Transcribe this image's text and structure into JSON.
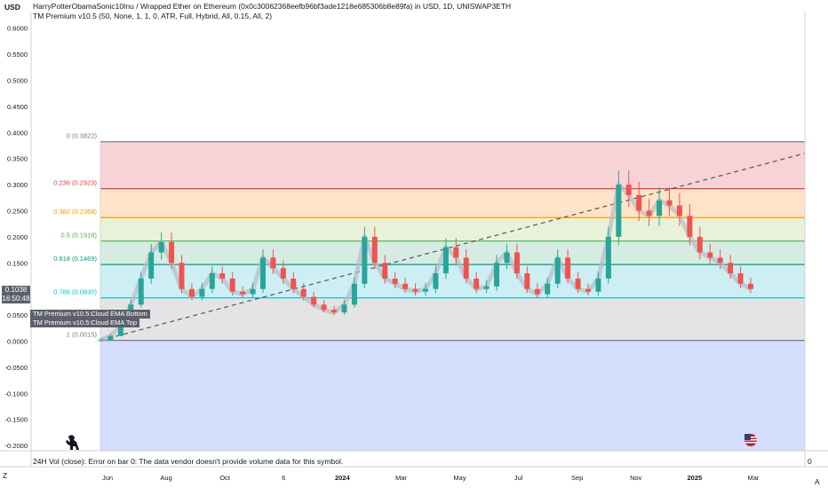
{
  "header": {
    "currency": "USD",
    "title": "HarryPotterObamaSonic10Inu / Wrapped Ether on Ethereum (0x0c30062368eefb96bf3ade1218e685306b8e89fa) in USD, 1D, UNISWAP3ETH",
    "indicator": "TM Premium v10.5 (50, None, 1, 1, 0, ATR, Full, Hybrid, All, 0.15, All, 2)"
  },
  "price_tag": {
    "price": "0.1038",
    "countdown": "16:50:48"
  },
  "ema_tags": [
    "TM Premium v10.5:Cloud EMA Bottom",
    "TM Premium v10.5:Cloud EMA Top"
  ],
  "volume": {
    "note": "24H Vol (close): Error on bar 0: The data vendor doesn't provide volume data for this symbol.",
    "axis_value": "0"
  },
  "controls": {
    "zoom_label": "Z",
    "auto_label": "A"
  },
  "icons": {
    "logo": "dinosaur-logo-icon",
    "flag": "us-flag-icon"
  },
  "chart_data": {
    "type": "candlestick",
    "yaxis": {
      "ticks": [
        "0.6000",
        "0.5500",
        "0.5000",
        "0.4500",
        "0.4000",
        "0.3500",
        "0.3000",
        "0.2500",
        "0.2000",
        "0.1500",
        "0.1000",
        "0.0500",
        "0.0000",
        "-0.0500",
        "-0.1000",
        "-0.1500",
        "-0.2000"
      ],
      "range": [
        -0.21,
        0.63
      ]
    },
    "xaxis": {
      "ticks": [
        "Jun",
        "Aug",
        "Oct",
        "6",
        "2024",
        "Mar",
        "May",
        "Jul",
        "Sep",
        "Nov",
        "2025",
        "Mar"
      ]
    },
    "fib_levels": [
      {
        "label": "0 (0.3822)",
        "value": 0.3822,
        "color": "#787b86",
        "fill": "#f8d3d5"
      },
      {
        "label": "0.236 (0.2923)",
        "value": 0.2923,
        "color": "#f23645",
        "fill": "#fde4c8"
      },
      {
        "label": "0.382 (0.2368)",
        "value": 0.2368,
        "color": "#ff9800",
        "fill": "#e9f2d9"
      },
      {
        "label": "0.5 (0.1918)",
        "value": 0.1918,
        "color": "#4caf50",
        "fill": "#d6ece3"
      },
      {
        "label": "0.618 (0.1469)",
        "value": 0.1469,
        "color": "#089981",
        "fill": "#cdeff3"
      },
      {
        "label": "0.786 (0.0830)",
        "value": 0.083,
        "color": "#00bcd4",
        "fill": "#e4e4e4"
      },
      {
        "label": "1 (0.0015)",
        "value": 0.0015,
        "color": "#787b86",
        "fill": "#d4ddfb"
      }
    ],
    "trendline": {
      "start": 0.0015,
      "end": 0.36
    },
    "price_series": [
      0.002,
      0.01,
      0.03,
      0.07,
      0.12,
      0.17,
      0.19,
      0.15,
      0.1,
      0.085,
      0.1,
      0.13,
      0.12,
      0.095,
      0.09,
      0.1,
      0.16,
      0.14,
      0.12,
      0.1,
      0.085,
      0.07,
      0.06,
      0.055,
      0.07,
      0.11,
      0.2,
      0.15,
      0.12,
      0.11,
      0.1,
      0.095,
      0.1,
      0.13,
      0.18,
      0.16,
      0.12,
      0.1,
      0.105,
      0.15,
      0.17,
      0.13,
      0.1,
      0.09,
      0.11,
      0.16,
      0.12,
      0.1,
      0.095,
      0.12,
      0.2,
      0.3,
      0.28,
      0.25,
      0.24,
      0.27,
      0.26,
      0.24,
      0.2,
      0.17,
      0.16,
      0.15,
      0.13,
      0.11,
      0.1
    ]
  }
}
